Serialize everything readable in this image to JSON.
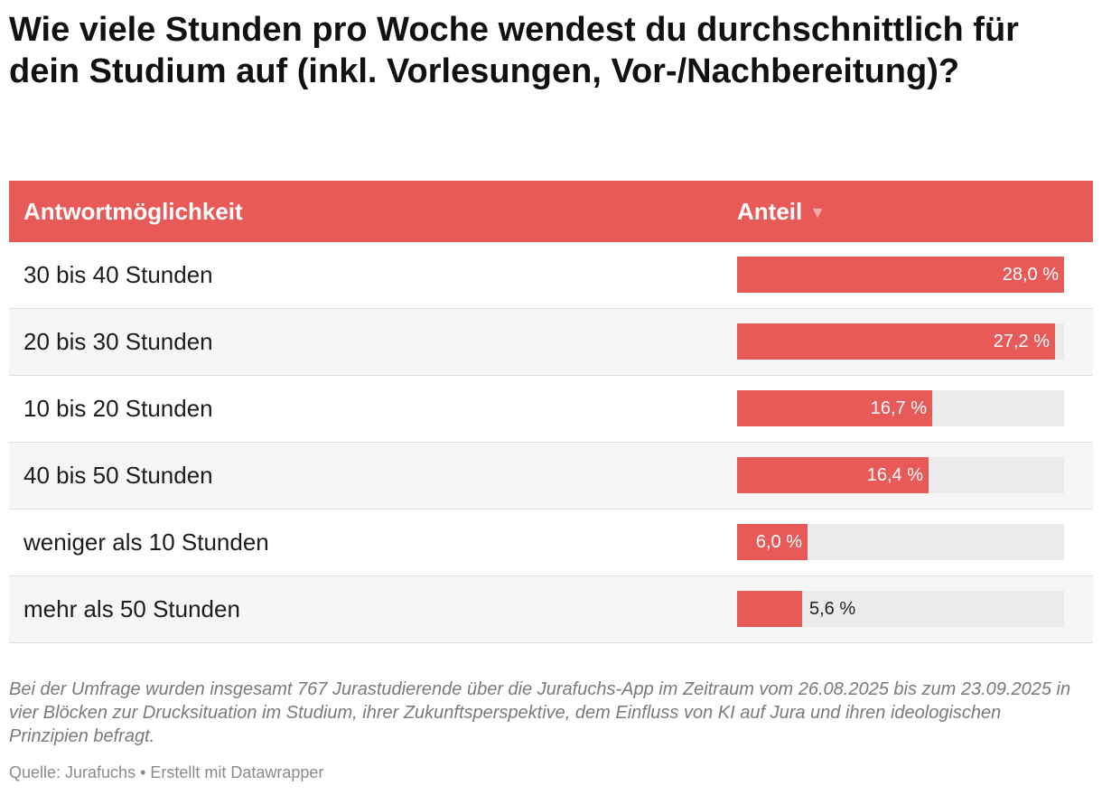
{
  "title": "Wie viele Stunden pro Woche wendest du durchschnittlich für dein Studium auf (inkl. Vorlesungen, Vor-/Nachbereitung)?",
  "table": {
    "col1_header": "Antwortmöglichkeit",
    "col2_header": "Anteil",
    "sort_indicator": "▼"
  },
  "accent_color": "#e85a58",
  "chart_data": {
    "type": "bar",
    "orientation": "horizontal",
    "categories": [
      "30 bis 40 Stunden",
      "20 bis 30 Stunden",
      "10 bis 20 Stunden",
      "40 bis 50 Stunden",
      "weniger als 10 Stunden",
      "mehr als 50 Stunden"
    ],
    "values": [
      28.0,
      27.2,
      16.7,
      16.4,
      6.0,
      5.6
    ],
    "value_labels": [
      "28,0 %",
      "27,2 %",
      "16,7 %",
      "16,4 %",
      "6,0 %",
      "5,6 %"
    ],
    "xlim": [
      0,
      28.0
    ],
    "unit": "%"
  },
  "footer": {
    "notes": "Bei der Umfrage wurden insgesamt 767 Jurastudierende über die Jurafuchs-App im Zeitraum vom 26.08.2025 bis zum 23.09.2025 in vier Blöcken zur Drucksituation im Studium, ihrer Zukunftsperspektive, dem Einfluss von KI auf Jura und ihren ideologischen Prinzipien befragt.",
    "source": "Quelle: Jurafuchs • Erstellt mit Datawrapper"
  }
}
